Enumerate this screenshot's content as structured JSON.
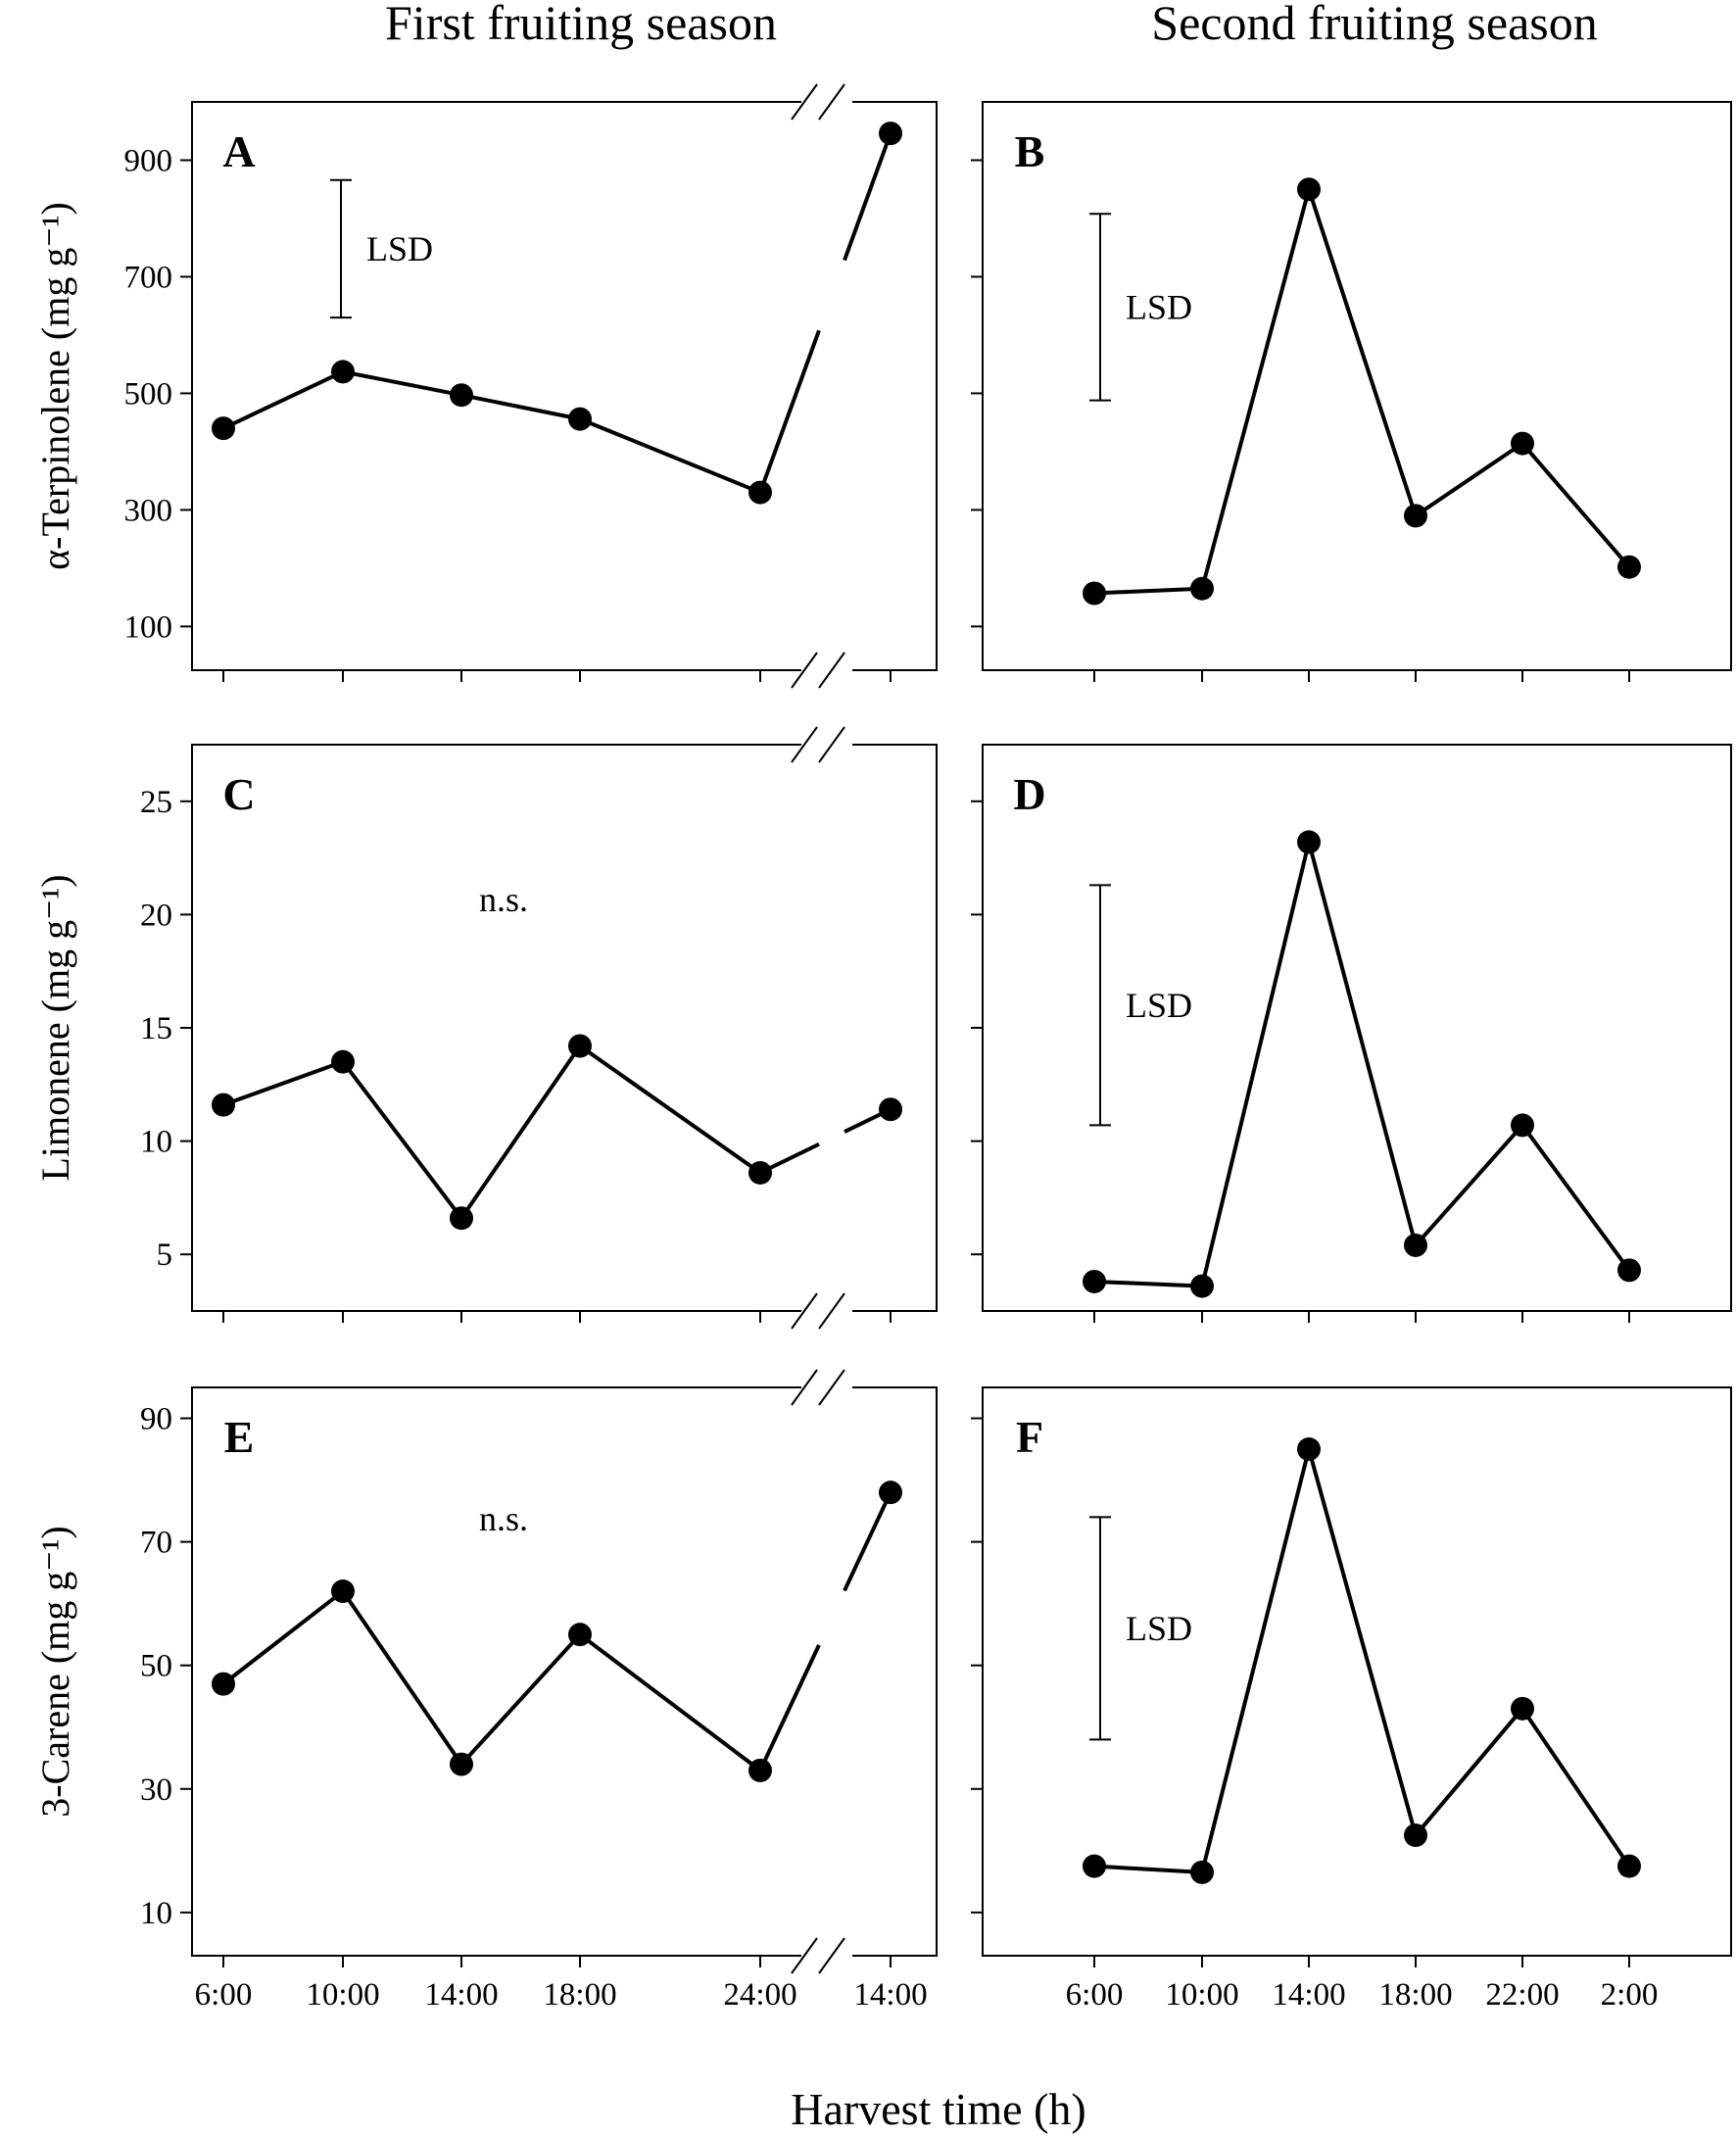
{
  "column_titles": [
    "First fruiting season",
    "Second fruiting season"
  ],
  "x_axis_label": "Harvest time (h)",
  "lsd_label": "LSD",
  "chart_data": [
    {
      "panel": "A",
      "type": "line",
      "season": "First fruiting season",
      "ylabel": "α-Terpinolene (mg g⁻¹)",
      "ylim": [
        25,
        1000
      ],
      "yticks": [
        100,
        300,
        500,
        700,
        900
      ],
      "categories": [
        "6:00",
        "10:00",
        "14:00",
        "18:00",
        "24:00",
        "14:00"
      ],
      "values": [
        440,
        537,
        497,
        456,
        330,
        946
      ],
      "lsd": [
        630,
        866
      ],
      "note": ""
    },
    {
      "panel": "B",
      "type": "line",
      "season": "Second fruiting season",
      "ylabel": "",
      "ylim": [
        25,
        1000
      ],
      "yticks": [
        100,
        300,
        500,
        700,
        900
      ],
      "categories": [
        "6:00",
        "10:00",
        "14:00",
        "18:00",
        "22:00",
        "2:00"
      ],
      "values": [
        157,
        165,
        850,
        290,
        414,
        202
      ],
      "lsd": [
        488,
        808
      ],
      "note": ""
    },
    {
      "panel": "C",
      "type": "line",
      "season": "First fruiting season",
      "ylabel": "Limonene (mg g⁻¹)",
      "ylim": [
        2.5,
        27.5
      ],
      "yticks": [
        5,
        10,
        15,
        20,
        25
      ],
      "categories": [
        "6:00",
        "10:00",
        "14:00",
        "18:00",
        "24:00",
        "14:00"
      ],
      "values": [
        11.6,
        13.5,
        6.6,
        14.2,
        8.6,
        11.4
      ],
      "lsd": null,
      "note": "n.s."
    },
    {
      "panel": "D",
      "type": "line",
      "season": "Second fruiting season",
      "ylabel": "",
      "ylim": [
        2.5,
        27.5
      ],
      "yticks": [
        5,
        10,
        15,
        20,
        25
      ],
      "categories": [
        "6:00",
        "10:00",
        "14:00",
        "18:00",
        "22:00",
        "2:00"
      ],
      "values": [
        3.8,
        3.6,
        23.2,
        5.4,
        10.7,
        4.3
      ],
      "lsd": [
        10.7,
        21.3
      ],
      "note": ""
    },
    {
      "panel": "E",
      "type": "line",
      "season": "First fruiting season",
      "ylabel": "3-Carene (mg g⁻¹)",
      "ylim": [
        3,
        95
      ],
      "yticks": [
        10,
        30,
        50,
        70,
        90
      ],
      "categories": [
        "6:00",
        "10:00",
        "14:00",
        "18:00",
        "24:00",
        "14:00"
      ],
      "values": [
        47,
        62,
        34,
        55,
        33,
        78
      ],
      "lsd": null,
      "note": "n.s."
    },
    {
      "panel": "F",
      "type": "line",
      "season": "Second fruiting season",
      "ylabel": "",
      "ylim": [
        3,
        95
      ],
      "yticks": [
        10,
        30,
        50,
        70,
        90
      ],
      "categories": [
        "6:00",
        "10:00",
        "14:00",
        "18:00",
        "22:00",
        "2:00"
      ],
      "values": [
        17.5,
        16.5,
        85,
        22.5,
        43,
        17.5
      ],
      "lsd": [
        38,
        74
      ],
      "note": ""
    }
  ]
}
